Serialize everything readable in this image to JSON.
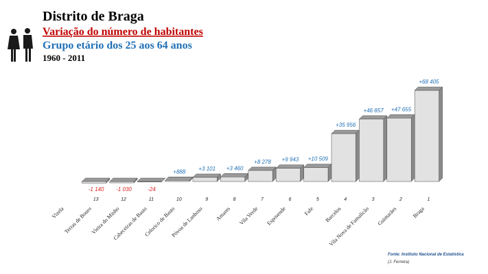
{
  "chart_data": {
    "type": "bar3d",
    "title": "Distrito de Braga",
    "subtitle": "Variação do número de habitantes",
    "group": "Grupo etário dos 25 aos 64 anos",
    "period": "1960 - 2011",
    "source": "Fonte: Instituto Nacional de Estatística",
    "author": "(J. Ferreira)",
    "categories": [
      "Vizela",
      "Terras de Bouro",
      "Vieira do Minho",
      "Cabeceiras de Basto",
      "Celorico de Basto",
      "Póvoa de Lanhoso",
      "Amares",
      "Vila Verde",
      "Esposende",
      "Fafe",
      "Barcelos",
      "Vila Nova de Famalicão",
      "Guimarães",
      "Braga"
    ],
    "ranks": [
      null,
      13,
      12,
      11,
      10,
      9,
      8,
      7,
      6,
      5,
      4,
      3,
      2,
      1
    ],
    "values": [
      null,
      -1140,
      -1030,
      -24,
      888,
      3101,
      3460,
      8278,
      9943,
      10509,
      35956,
      46857,
      47655,
      68405
    ],
    "value_labels": [
      null,
      "-1 140",
      "-1 030",
      "-24",
      "+888",
      "+3 101",
      "+3 460",
      "+8 278",
      "+9 943",
      "+10 509",
      "+35 956",
      "+46 857",
      "+47 655",
      "+68 405"
    ],
    "color": "#e2e2e2",
    "positive_label_color": "#1f6fb5",
    "negative_label_color": "#e02020"
  }
}
